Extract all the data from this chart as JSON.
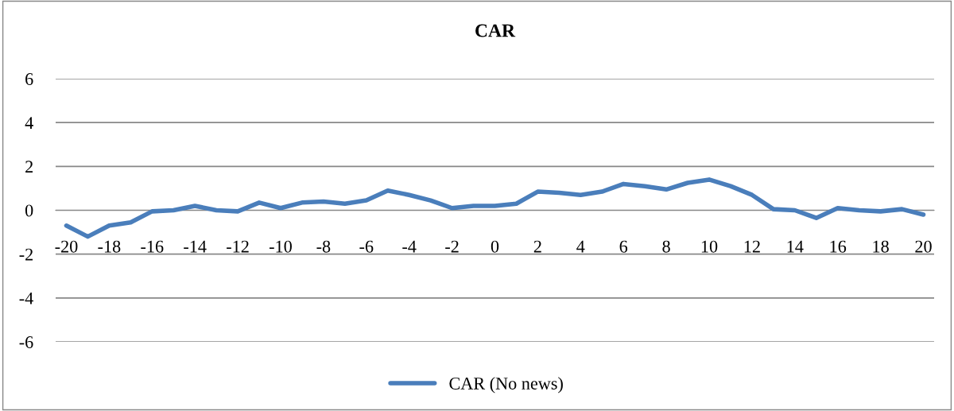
{
  "chart_data": {
    "type": "line",
    "title": "CAR",
    "categories": [
      "-20",
      null,
      "-18",
      null,
      "-16",
      null,
      "-14",
      null,
      "-12",
      null,
      "-10",
      null,
      "-8",
      null,
      "-6",
      null,
      "-4",
      null,
      "-2",
      null,
      "0",
      null,
      "2",
      null,
      "4",
      null,
      "6",
      null,
      "8",
      null,
      "10",
      null,
      "12",
      null,
      "14",
      null,
      "16",
      null,
      "18",
      null,
      "20"
    ],
    "series": [
      {
        "name": "CAR (No news)",
        "color": "#4a7ebb",
        "values": [
          -0.7,
          -1.2,
          -0.7,
          -0.55,
          -0.05,
          0.0,
          0.2,
          0.0,
          -0.05,
          0.35,
          0.1,
          0.35,
          0.4,
          0.3,
          0.45,
          0.9,
          0.7,
          0.45,
          0.1,
          0.2,
          0.2,
          0.3,
          0.85,
          0.8,
          0.7,
          0.85,
          1.2,
          1.1,
          0.95,
          1.25,
          1.4,
          1.1,
          0.7,
          0.05,
          0.0,
          -0.35,
          0.1,
          0.0,
          -0.05,
          0.05,
          -0.2
        ]
      }
    ],
    "ylim": [
      -6,
      6
    ],
    "yticks": [
      -6,
      -4,
      -2,
      0,
      2,
      4,
      6
    ],
    "grid": "y",
    "legend": "bottom",
    "marker": "none",
    "line_style": "solid"
  }
}
